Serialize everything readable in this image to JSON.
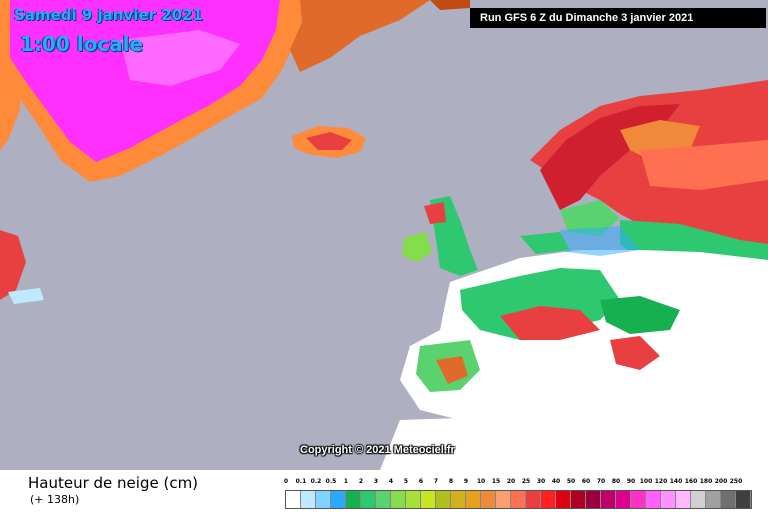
{
  "header": {
    "date": "Samedi 9 janvier 2021",
    "time": "1:00 locale",
    "run": "Run GFS 6 Z du Dimanche 3 janvier 2021"
  },
  "map": {
    "copyright": "Copyright © 2021 Meteociel.fr",
    "colors": {
      "sea": "#aeb0c2",
      "land_no_snow": "#ffffff",
      "greenland_deep": "#ff30ff",
      "greenland_edge": "#ff8a3a"
    }
  },
  "legend": {
    "title": "Hauteur de neige (cm)",
    "subtitle": "(+ 138h)",
    "values": [
      "0",
      "0.1",
      "0.2",
      "0.5",
      "1",
      "2",
      "3",
      "4",
      "5",
      "6",
      "7",
      "8",
      "9",
      "10",
      "15",
      "20",
      "25",
      "30",
      "40",
      "50",
      "60",
      "70",
      "80",
      "90",
      "100",
      "120",
      "140",
      "160",
      "180",
      "200",
      "250"
    ],
    "colors": [
      "#ffffff",
      "#bfe9ff",
      "#7fd4ff",
      "#2aa9ff",
      "#16b050",
      "#2ec870",
      "#5ad270",
      "#86dc4a",
      "#a6e03a",
      "#c8e620",
      "#b0c020",
      "#d2b01e",
      "#e8a020",
      "#f08a3a",
      "#f8a070",
      "#ff7050",
      "#e84040",
      "#ff2020",
      "#e00010",
      "#b00020",
      "#9a0040",
      "#c0006a",
      "#e00090",
      "#ff30c8",
      "#ff60ff",
      "#ff90ff",
      "#ffb8ff",
      "#d0d0d0",
      "#a0a0a0",
      "#707070",
      "#404040"
    ]
  }
}
